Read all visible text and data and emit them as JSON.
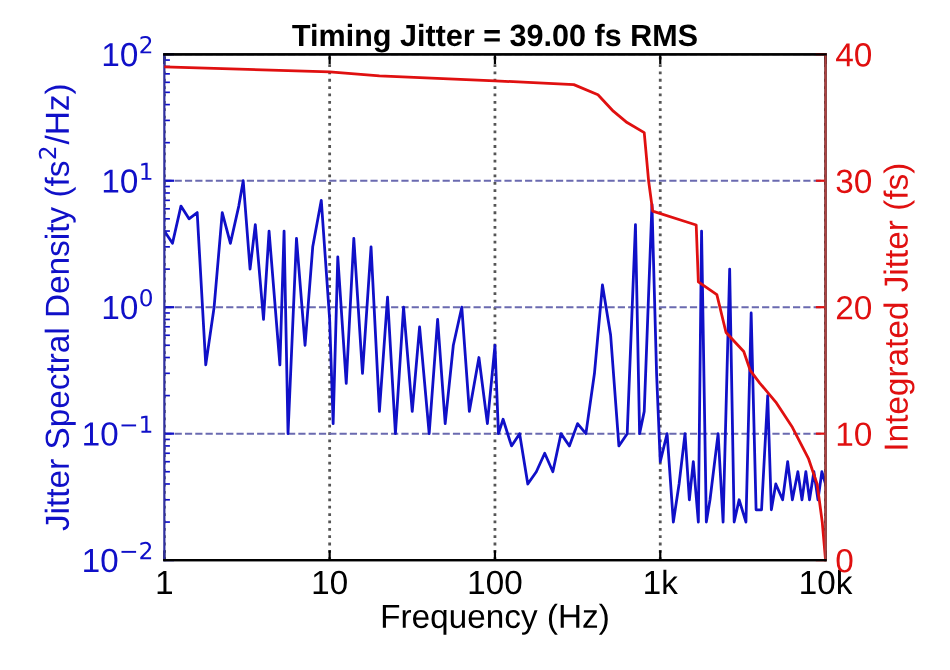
{
  "chart_data": {
    "type": "line",
    "title": "Timing Jitter = 39.00 fs RMS",
    "xlabel": "Frequency (Hz)",
    "ylabel": "Jitter Spectral Density (fs$^{2}$/Hz)",
    "y2label": "Integrated Jitter (fs)",
    "log": "xy",
    "grid": true,
    "legend": false,
    "marker": "none",
    "line_style": "solid",
    "xlim": [
      1,
      10000
    ],
    "xticks": [
      1,
      10,
      100,
      {
        "value": 1000,
        "label": "1k"
      },
      {
        "value": 10000,
        "label": "10k"
      }
    ],
    "ylim": [
      0.01,
      100
    ],
    "yticks": [
      {
        "value": 0.01,
        "label": "10$^{−2}$"
      },
      {
        "value": 0.1,
        "label": "10$^{−1}$"
      },
      {
        "value": 1,
        "label": "10$^{0}$"
      },
      {
        "value": 10,
        "label": "10$^{1}$"
      },
      {
        "value": 100,
        "label": "10$^{2}$"
      }
    ],
    "y2lim": [
      0,
      40
    ],
    "y2ticks": [
      0,
      10,
      20,
      30,
      40
    ],
    "series": [
      {
        "color": "#1010c8",
        "x": [
          1.0,
          1.12,
          1.26,
          1.41,
          1.58,
          1.78,
          2.0,
          2.24,
          2.51,
          2.82,
          3.0,
          3.3,
          3.55,
          3.98,
          4.3,
          5.0,
          5.3,
          5.6,
          6.3,
          7.1,
          7.9,
          8.9,
          10,
          10.5,
          11.2,
          12.6,
          14,
          15.8,
          17.8,
          20,
          22.4,
          25,
          28,
          31.6,
          35,
          40,
          45,
          50,
          56,
          63,
          70,
          80,
          90,
          100,
          105,
          112,
          126,
          141,
          158,
          178,
          200,
          224,
          251,
          282,
          316,
          355,
          400,
          447,
          501,
          562,
          631,
          708,
          750,
          800,
          891,
          950,
          1000,
          1100,
          1200,
          1300,
          1412,
          1500,
          1585,
          1700,
          1778,
          1900,
          2000,
          2239,
          2400,
          2630,
          2800,
          3000,
          3300,
          3548,
          3800,
          4100,
          4467,
          4700,
          5000,
          5500,
          5900,
          6300,
          6800,
          7200,
          7600,
          8000,
          8500,
          9000,
          9500,
          10000
        ],
        "values": [
          4.0,
          3.2,
          6.3,
          5.0,
          5.6,
          0.35,
          1.0,
          5.6,
          3.2,
          6.3,
          10,
          2.0,
          4.5,
          0.8,
          4.0,
          0.35,
          4.0,
          0.1,
          3.5,
          0.5,
          3.0,
          7.0,
          0.8,
          0.12,
          2.5,
          0.25,
          3.5,
          0.3,
          3.0,
          0.15,
          1.2,
          0.1,
          1.0,
          0.15,
          0.7,
          0.1,
          0.8,
          0.12,
          0.5,
          1.0,
          0.15,
          0.4,
          0.12,
          0.5,
          0.1,
          0.13,
          0.08,
          0.1,
          0.04,
          0.05,
          0.07,
          0.05,
          0.1,
          0.08,
          0.12,
          0.1,
          0.3,
          1.5,
          0.6,
          0.08,
          0.1,
          4.5,
          0.1,
          0.15,
          6.5,
          0.3,
          0.06,
          0.1,
          0.02,
          0.04,
          0.1,
          0.03,
          0.06,
          0.02,
          4.0,
          0.02,
          0.03,
          0.1,
          0.02,
          2.0,
          0.02,
          0.03,
          0.02,
          0.9,
          0.025,
          0.025,
          0.2,
          0.025,
          0.04,
          0.03,
          0.06,
          0.03,
          0.05,
          0.03,
          0.05,
          0.03,
          0.05,
          0.03,
          0.05,
          0.04
        ]
      },
      {
        "color": "#e01010",
        "axis": "y2",
        "x": [
          1,
          10,
          20,
          100,
          300,
          420,
          520,
          630,
          800,
          850,
          900,
          1400,
          1650,
          1700,
          2200,
          2500,
          3200,
          3500,
          4000,
          5000,
          6300,
          7900,
          8900,
          9550,
          10000
        ],
        "values": [
          39,
          38.6,
          38.3,
          37.9,
          37.6,
          36.8,
          35.5,
          34.6,
          33.8,
          30,
          27.6,
          26.8,
          26.5,
          22,
          21,
          18,
          16.5,
          15,
          14,
          12.5,
          10.5,
          8,
          6,
          3,
          0
        ]
      }
    ]
  }
}
